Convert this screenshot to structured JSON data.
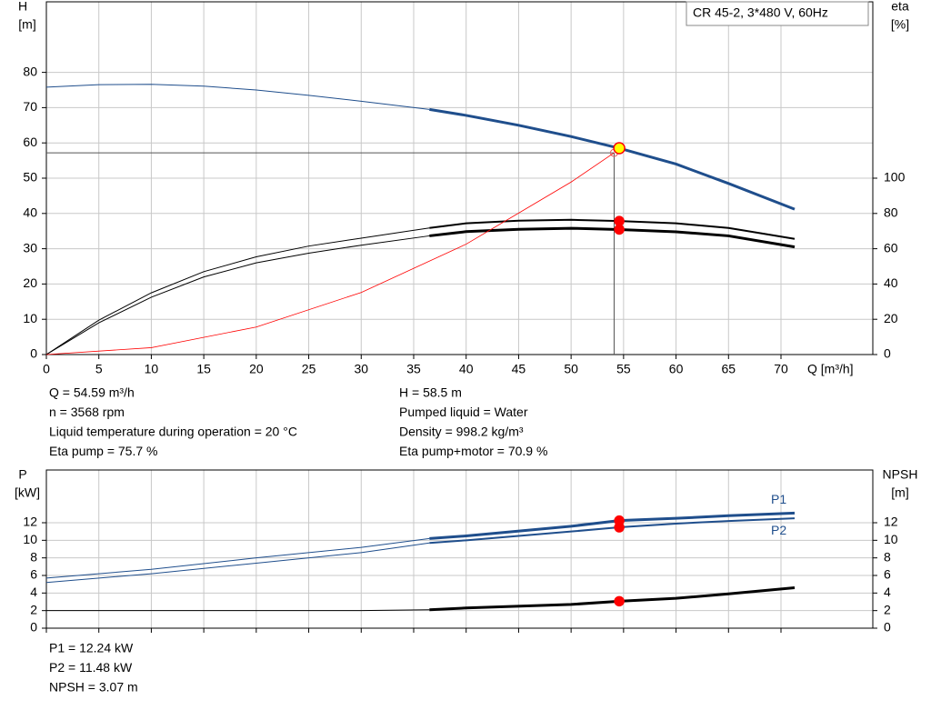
{
  "chart_data": [
    {
      "type": "line",
      "title": "CR 45-2, 3*480 V, 60Hz",
      "ylabel": [
        "H",
        "[m]"
      ],
      "y2label": [
        "eta",
        "[%]"
      ],
      "xlabel": "Q [m³/h]",
      "xlim": [
        0,
        78.75
      ],
      "xticks": [
        0,
        5,
        10,
        15,
        20,
        25,
        30,
        35,
        40,
        45,
        50,
        55,
        60,
        65,
        70
      ],
      "ylim": [
        0,
        100
      ],
      "yticks": [
        0,
        10,
        20,
        30,
        40,
        50,
        60,
        70,
        80
      ],
      "y2lim": [
        0,
        200
      ],
      "y2ticks": [
        0,
        20,
        40,
        60,
        80,
        100
      ],
      "grid": true,
      "series": [
        {
          "color": "#1f4e8c",
          "width": 1,
          "axis": "y",
          "x": [
            0,
            5,
            10,
            15,
            20,
            25,
            30,
            36.5
          ],
          "values": [
            75.8,
            76.5,
            76.6,
            76.1,
            75,
            73.5,
            71.8,
            69.5
          ]
        },
        {
          "color": "#1f4e8c",
          "width": 3,
          "axis": "y",
          "x": [
            36.5,
            40,
            45,
            50,
            54.59,
            60,
            65,
            71.3
          ],
          "values": [
            69.5,
            67.8,
            65,
            61.8,
            58.5,
            54,
            48.5,
            41.2
          ]
        },
        {
          "color": "#000000",
          "width": 1,
          "axis": "y2",
          "x": [
            0,
            5,
            10,
            15,
            20,
            25,
            30,
            36.5
          ],
          "values": [
            0,
            19.5,
            35,
            47,
            55.4,
            61.5,
            66,
            71.8
          ]
        },
        {
          "color": "#000000",
          "width": 2,
          "axis": "y2",
          "x": [
            36.5,
            40,
            45,
            50,
            54.59,
            60,
            65,
            71.3
          ],
          "values": [
            71.8,
            74.4,
            75.9,
            76.4,
            75.7,
            74.4,
            71.8,
            65.6
          ]
        },
        {
          "color": "#000000",
          "width": 1,
          "axis": "y2",
          "x": [
            0,
            5,
            10,
            15,
            20,
            25,
            30,
            36.5
          ],
          "values": [
            0,
            18,
            32.5,
            44,
            52,
            57.5,
            62,
            67.3
          ]
        },
        {
          "color": "#000000",
          "width": 3,
          "axis": "y2",
          "x": [
            36.5,
            40,
            45,
            50,
            54.59,
            60,
            65,
            71.3
          ],
          "values": [
            67.3,
            69.7,
            71,
            71.6,
            70.9,
            69.6,
            67.3,
            61
          ]
        },
        {
          "color": "#ff0000",
          "width": 0.8,
          "axis": "y",
          "x": [
            0,
            10,
            20,
            30,
            40,
            50,
            54.1
          ],
          "values": [
            0,
            1.95,
            7.8,
            17.6,
            31.3,
            48.9,
            57.2
          ]
        }
      ],
      "duty_point": {
        "x": 54.1,
        "y": 57.2
      },
      "markers": [
        {
          "x": 54.59,
          "y": 58.5,
          "axis": "y",
          "color": "#ffff00"
        },
        {
          "x": 54.59,
          "y": 75.7,
          "axis": "y2",
          "color": "#ff0000"
        },
        {
          "x": 54.59,
          "y": 70.9,
          "axis": "y2",
          "color": "#ff0000"
        }
      ],
      "annotations": [
        "Q = 54.59 m³/h",
        "n = 3568 rpm",
        "Liquid temperature during operation = 20 °C",
        "Eta pump = 75.7 %",
        "H = 58.5 m",
        "Pumped liquid = Water",
        "Density = 998.2 kg/m³",
        "Eta pump+motor = 70.9 %"
      ]
    },
    {
      "type": "line",
      "ylabel": [
        "P",
        "[kW]"
      ],
      "y2label": [
        "NPSH",
        "[m]"
      ],
      "xlim": [
        0,
        78.75
      ],
      "xticks": [
        0,
        5,
        10,
        15,
        20,
        25,
        30,
        35,
        40,
        45,
        50,
        55,
        60,
        65,
        70
      ],
      "ylim": [
        0,
        18
      ],
      "yticks": [
        0,
        2,
        4,
        6,
        8,
        10,
        12
      ],
      "y2lim": [
        0,
        18
      ],
      "y2ticks": [
        0,
        2,
        4,
        6,
        8,
        10,
        12
      ],
      "grid": true,
      "series": [
        {
          "color": "#1f4e8c",
          "width": 1,
          "axis": "y",
          "x": [
            0,
            10,
            20,
            30,
            36.5
          ],
          "values": [
            5.7,
            6.7,
            8.0,
            9.2,
            10.2
          ]
        },
        {
          "color": "#1f4e8c",
          "width": 3,
          "axis": "y",
          "label": "P1",
          "x": [
            36.5,
            40,
            50,
            54.59,
            60,
            65,
            71.3
          ],
          "values": [
            10.2,
            10.5,
            11.6,
            12.24,
            12.5,
            12.8,
            13.1
          ]
        },
        {
          "color": "#1f4e8c",
          "width": 1,
          "axis": "y",
          "x": [
            0,
            10,
            20,
            30,
            36.5
          ],
          "values": [
            5.2,
            6.2,
            7.4,
            8.6,
            9.7
          ]
        },
        {
          "color": "#1f4e8c",
          "width": 2,
          "axis": "y",
          "label": "P2",
          "x": [
            36.5,
            40,
            50,
            54.59,
            60,
            65,
            71.3
          ],
          "values": [
            9.7,
            10.0,
            11.0,
            11.48,
            11.9,
            12.2,
            12.5
          ]
        },
        {
          "color": "#000000",
          "width": 1,
          "axis": "y2",
          "x": [
            0,
            30,
            36.5
          ],
          "values": [
            2.0,
            2.0,
            2.1
          ]
        },
        {
          "color": "#000000",
          "width": 3,
          "axis": "y2",
          "x": [
            36.5,
            40,
            50,
            54.59,
            60,
            65,
            71.3
          ],
          "values": [
            2.1,
            2.3,
            2.7,
            3.07,
            3.4,
            3.9,
            4.6
          ]
        }
      ],
      "markers": [
        {
          "x": 54.59,
          "y": 12.24,
          "axis": "y",
          "color": "#ff0000"
        },
        {
          "x": 54.59,
          "y": 11.48,
          "axis": "y",
          "color": "#ff0000"
        },
        {
          "x": 54.59,
          "y": 3.07,
          "axis": "y2",
          "color": "#ff0000"
        }
      ],
      "annotations": [
        "P1 = 12.24 kW",
        "P2 = 11.48 kW",
        "NPSH = 3.07 m"
      ]
    }
  ]
}
